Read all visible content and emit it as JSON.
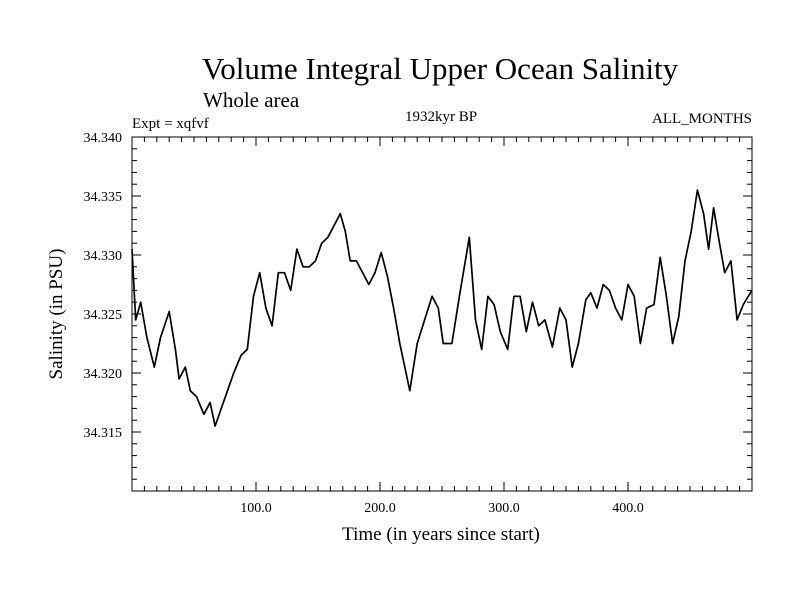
{
  "chart_data": {
    "type": "line",
    "title": "Volume Integral Upper Ocean Salinity",
    "subtitle": "Whole area",
    "expt_label": "Expt = xqfvf",
    "period_label": "1932kyr BP",
    "months_label": "ALL_MONTHS",
    "xlabel": "Time (in years since start)",
    "ylabel": "Salinity (in PSU)",
    "xlim": [
      0,
      500
    ],
    "ylim": [
      34.31,
      34.34
    ],
    "xticks": [
      100,
      200,
      300,
      400
    ],
    "xtick_labels": [
      "100.0",
      "200.0",
      "300.0",
      "400.0"
    ],
    "yticks": [
      34.315,
      34.32,
      34.325,
      34.33,
      34.335,
      34.34
    ],
    "ytick_labels": [
      "34.315",
      "34.320",
      "34.325",
      "34.330",
      "34.335",
      "34.340"
    ],
    "grid": false,
    "series": [
      {
        "name": "Salinity",
        "x": [
          0,
          3,
          7,
          12,
          18,
          23,
          30,
          35,
          38,
          43,
          47,
          52,
          58,
          63,
          67,
          72,
          77,
          82,
          88,
          93,
          98,
          103,
          108,
          113,
          118,
          123,
          128,
          133,
          138,
          143,
          148,
          153,
          158,
          163,
          168,
          172,
          176,
          181,
          186,
          191,
          196,
          201,
          206,
          211,
          216,
          220,
          224,
          230,
          236,
          242,
          247,
          251,
          258,
          264,
          272,
          277,
          282,
          287,
          292,
          297,
          303,
          308,
          313,
          318,
          323,
          328,
          333,
          339,
          345,
          350,
          355,
          360,
          366,
          370,
          375,
          380,
          385,
          390,
          395,
          400,
          405,
          410,
          415,
          421,
          426,
          431,
          436,
          441,
          446,
          451,
          456,
          461,
          465,
          469,
          473,
          478,
          483,
          488,
          493,
          497,
          500
        ],
        "values": [
          34.3305,
          34.3245,
          34.326,
          34.323,
          34.3205,
          34.323,
          34.3252,
          34.322,
          34.3195,
          34.3205,
          34.3185,
          34.318,
          34.3165,
          34.3175,
          34.3155,
          34.317,
          34.3185,
          34.32,
          34.3215,
          34.322,
          34.3265,
          34.3285,
          34.3255,
          34.324,
          34.3285,
          34.3285,
          34.327,
          34.3305,
          34.329,
          34.329,
          34.3295,
          34.331,
          34.3315,
          34.3325,
          34.3335,
          34.332,
          34.3295,
          34.3295,
          34.3285,
          34.3275,
          34.3285,
          34.3302,
          34.3282,
          34.3255,
          34.3225,
          34.3205,
          34.3185,
          34.3225,
          34.3245,
          34.3265,
          34.3255,
          34.3225,
          34.3225,
          34.3265,
          34.3315,
          34.3245,
          34.322,
          34.3265,
          34.3258,
          34.3235,
          34.322,
          34.3265,
          34.3265,
          34.3235,
          34.326,
          34.324,
          34.3245,
          34.3222,
          34.3255,
          34.3245,
          34.3205,
          34.3225,
          34.3262,
          34.3268,
          34.3255,
          34.3275,
          34.327,
          34.3255,
          34.3245,
          34.3275,
          34.3265,
          34.3225,
          34.3255,
          34.3258,
          34.3298,
          34.3265,
          34.3225,
          34.3248,
          34.3295,
          34.332,
          34.3355,
          34.3335,
          34.3305,
          34.334,
          34.3315,
          34.3285,
          34.3295,
          34.3245,
          34.3258,
          34.3265,
          34.327
        ]
      }
    ]
  }
}
